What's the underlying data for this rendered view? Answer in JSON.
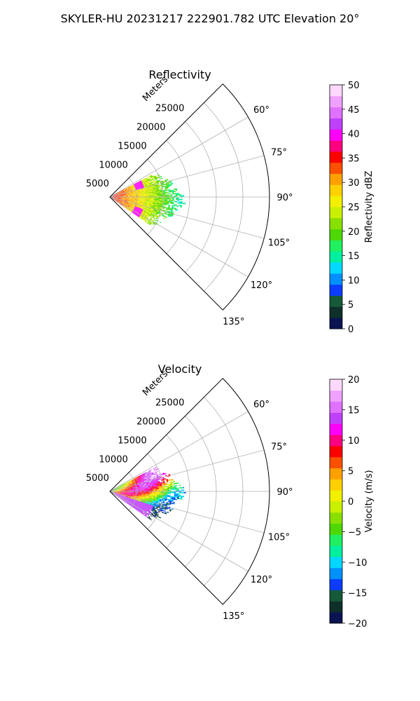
{
  "figure": {
    "suptitle": "SKYLER-HU  20231217  222901.782 UTC Elevation 20°"
  },
  "chart_data": [
    {
      "type": "heatmap",
      "projection": "polar-sector",
      "title": "Reflectivity",
      "range_label": "Meters",
      "range_ticks": [
        "5000",
        "10000",
        "15000",
        "20000",
        "25000"
      ],
      "range_tick_values": [
        5000,
        10000,
        15000,
        20000,
        25000
      ],
      "range_max": 30000,
      "azimuth_ticks": [
        "60°",
        "75°",
        "90°",
        "105°",
        "120°",
        "135°"
      ],
      "azimuth_tick_values": [
        60,
        75,
        90,
        105,
        120,
        135
      ],
      "azimuth_range": [
        45,
        135
      ],
      "grid": true,
      "colorbar": {
        "label": "Reflectivity dBZ",
        "min": 0,
        "max": 50,
        "ticks": [
          "0",
          "5",
          "10",
          "15",
          "20",
          "25",
          "30",
          "35",
          "40",
          "45",
          "50"
        ],
        "colors": [
          "#0a1452",
          "#0f2f2a",
          "#155a3a",
          "#0b3cff",
          "#0090ff",
          "#00d8ff",
          "#00f0a0",
          "#20f060",
          "#4cd800",
          "#88e000",
          "#c8f000",
          "#f0f000",
          "#ffd000",
          "#ffa000",
          "#ff5000",
          "#ff0000",
          "#ff0080",
          "#ff00ff",
          "#c040ff",
          "#e070ff",
          "#f0a0ff",
          "#ffd8ff"
        ]
      },
      "echo_region": {
        "azimuth_range": [
          62,
          125
        ],
        "range_max_m": 14000
      }
    },
    {
      "type": "heatmap",
      "projection": "polar-sector",
      "title": "Velocity",
      "range_label": "Meters",
      "range_ticks": [
        "5000",
        "10000",
        "15000",
        "20000",
        "25000"
      ],
      "range_tick_values": [
        5000,
        10000,
        15000,
        20000,
        25000
      ],
      "range_max": 30000,
      "azimuth_ticks": [
        "60°",
        "75°",
        "90°",
        "105°",
        "120°",
        "135°"
      ],
      "azimuth_tick_values": [
        60,
        75,
        90,
        105,
        120,
        135
      ],
      "azimuth_range": [
        45,
        135
      ],
      "grid": true,
      "colorbar": {
        "label": "Velocity (m/s)",
        "min": -20,
        "max": 20,
        "ticks": [
          "−20",
          "−15",
          "−10",
          "−5",
          "0",
          "5",
          "10",
          "15",
          "20"
        ],
        "colors": [
          "#0a1452",
          "#0f2f2a",
          "#155a3a",
          "#0b3cff",
          "#0090ff",
          "#00d8ff",
          "#00f0a0",
          "#20f060",
          "#4cd800",
          "#88e000",
          "#c8f000",
          "#f0f000",
          "#ffd000",
          "#ffa000",
          "#ff5000",
          "#ff0000",
          "#ff0080",
          "#ff00ff",
          "#c040ff",
          "#e070ff",
          "#f0a0ff",
          "#ffd8ff"
        ]
      },
      "echo_region": {
        "azimuth_range": [
          62,
          125
        ],
        "range_max_m": 14000
      }
    }
  ]
}
